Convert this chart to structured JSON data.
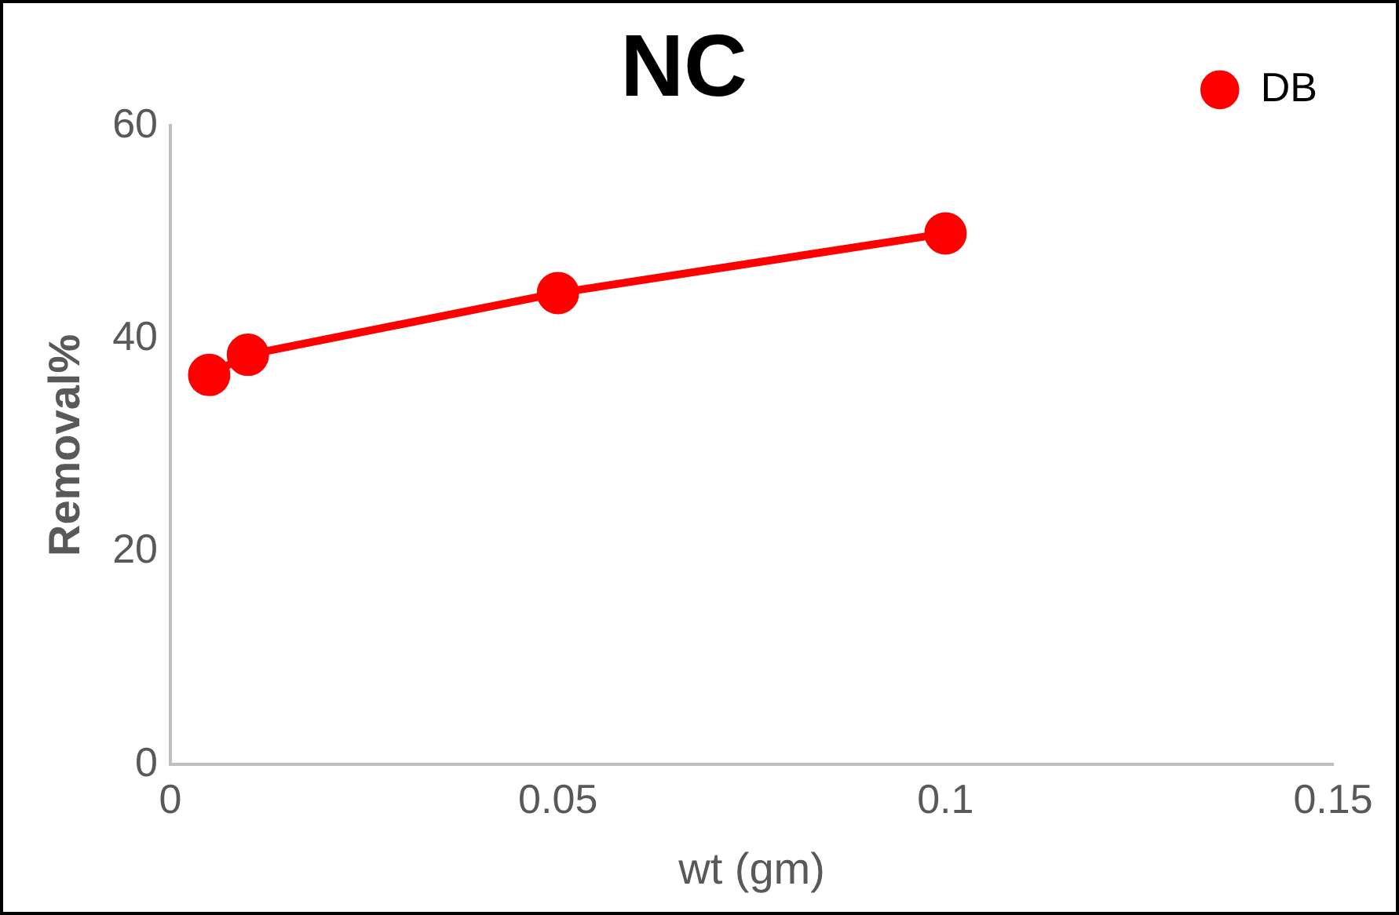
{
  "chart_data": {
    "type": "line",
    "title": "NC",
    "xlabel": "wt (gm)",
    "ylabel": "Removal%",
    "x": [
      0.005,
      0.01,
      0.05,
      0.1
    ],
    "series": [
      {
        "name": "DB",
        "color": "#ff0000",
        "values": [
          36.6,
          38.5,
          44.3,
          49.9
        ]
      }
    ],
    "xlim": [
      0,
      0.15
    ],
    "xticks": [
      0,
      0.05,
      0.1,
      0.15
    ],
    "ylim": [
      0,
      60
    ],
    "yticks": [
      0,
      20,
      40,
      60
    ],
    "grid": false,
    "legend": "top right",
    "marker": "circle",
    "line_style": "solid"
  }
}
